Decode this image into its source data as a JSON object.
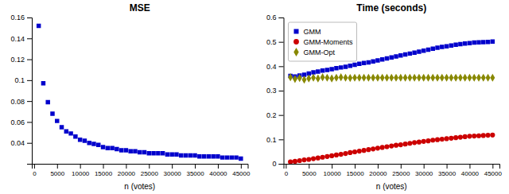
{
  "chart_data": [
    {
      "type": "scatter",
      "title": "MSE",
      "xlabel": "n (votes)",
      "x": [
        1000,
        2000,
        3000,
        4000,
        5000,
        6000,
        7000,
        8000,
        9000,
        10000,
        11000,
        12000,
        13000,
        14000,
        15000,
        16000,
        17000,
        18000,
        19000,
        20000,
        21000,
        22000,
        23000,
        24000,
        25000,
        26000,
        27000,
        28000,
        29000,
        30000,
        31000,
        32000,
        33000,
        34000,
        35000,
        36000,
        37000,
        38000,
        39000,
        40000,
        41000,
        42000,
        43000,
        44000,
        45000
      ],
      "values": [
        0.152,
        0.097,
        0.079,
        0.068,
        0.061,
        0.055,
        0.051,
        0.049,
        0.046,
        0.043,
        0.042,
        0.04,
        0.039,
        0.038,
        0.036,
        0.035,
        0.035,
        0.034,
        0.033,
        0.033,
        0.032,
        0.032,
        0.031,
        0.031,
        0.03,
        0.03,
        0.03,
        0.03,
        0.029,
        0.029,
        0.029,
        0.028,
        0.028,
        0.028,
        0.028,
        0.027,
        0.027,
        0.027,
        0.027,
        0.027,
        0.026,
        0.026,
        0.026,
        0.026,
        0.025
      ],
      "color": "#0000cc",
      "marker": "square",
      "xlim": [
        -500,
        46500
      ],
      "xticks": [
        0,
        5000,
        10000,
        15000,
        20000,
        25000,
        30000,
        35000,
        40000,
        45000
      ],
      "ylim": [
        0.02,
        0.16
      ],
      "yticks": [
        0.04,
        0.06,
        0.08,
        0.1,
        0.12,
        0.14,
        0.16
      ]
    },
    {
      "type": "scatter",
      "title": "Time (seconds)",
      "xlabel": "n (votes)",
      "x": [
        1000,
        2000,
        3000,
        4000,
        5000,
        6000,
        7000,
        8000,
        9000,
        10000,
        11000,
        12000,
        13000,
        14000,
        15000,
        16000,
        17000,
        18000,
        19000,
        20000,
        21000,
        22000,
        23000,
        24000,
        25000,
        26000,
        27000,
        28000,
        29000,
        30000,
        31000,
        32000,
        33000,
        34000,
        35000,
        36000,
        37000,
        38000,
        39000,
        40000,
        41000,
        42000,
        43000,
        44000,
        45000
      ],
      "series": [
        {
          "name": "GMM",
          "color": "#0000cc",
          "marker": "square",
          "values": [
            0.36,
            0.358,
            0.362,
            0.365,
            0.37,
            0.375,
            0.378,
            0.382,
            0.385,
            0.388,
            0.392,
            0.395,
            0.398,
            0.402,
            0.406,
            0.41,
            0.413,
            0.416,
            0.42,
            0.424,
            0.428,
            0.432,
            0.436,
            0.44,
            0.444,
            0.448,
            0.452,
            0.456,
            0.46,
            0.464,
            0.468,
            0.472,
            0.476,
            0.479,
            0.482,
            0.485,
            0.488,
            0.491,
            0.493,
            0.495,
            0.497,
            0.498,
            0.499,
            0.5,
            0.501
          ]
        },
        {
          "name": "GMM-Moments",
          "color": "#cc0000",
          "marker": "circle",
          "values": [
            0.008,
            0.01,
            0.013,
            0.016,
            0.018,
            0.021,
            0.024,
            0.027,
            0.03,
            0.033,
            0.036,
            0.039,
            0.042,
            0.046,
            0.049,
            0.052,
            0.055,
            0.058,
            0.061,
            0.064,
            0.067,
            0.07,
            0.073,
            0.076,
            0.078,
            0.081,
            0.084,
            0.087,
            0.089,
            0.092,
            0.094,
            0.097,
            0.099,
            0.101,
            0.103,
            0.105,
            0.107,
            0.109,
            0.111,
            0.113,
            0.114,
            0.115,
            0.116,
            0.117,
            0.118
          ]
        },
        {
          "name": "GMM-Opt",
          "color": "#888800",
          "marker": "diamond",
          "values": [
            0.355,
            0.348,
            0.352,
            0.345,
            0.35,
            0.353,
            0.35,
            0.355,
            0.353,
            0.35,
            0.353,
            0.355,
            0.353,
            0.352,
            0.353,
            0.353,
            0.353,
            0.353,
            0.353,
            0.353,
            0.353,
            0.353,
            0.353,
            0.353,
            0.353,
            0.353,
            0.353,
            0.353,
            0.353,
            0.353,
            0.353,
            0.353,
            0.353,
            0.353,
            0.353,
            0.353,
            0.353,
            0.353,
            0.353,
            0.353,
            0.353,
            0.353,
            0.353,
            0.353,
            0.353
          ]
        }
      ],
      "xlim": [
        -500,
        46500
      ],
      "xticks": [
        0,
        5000,
        10000,
        15000,
        20000,
        25000,
        30000,
        35000,
        40000,
        45000
      ],
      "ylim": [
        0,
        0.6
      ],
      "yticks": [
        0,
        0.1,
        0.2,
        0.3,
        0.4,
        0.5,
        0.6
      ],
      "legend": "upper left"
    }
  ]
}
